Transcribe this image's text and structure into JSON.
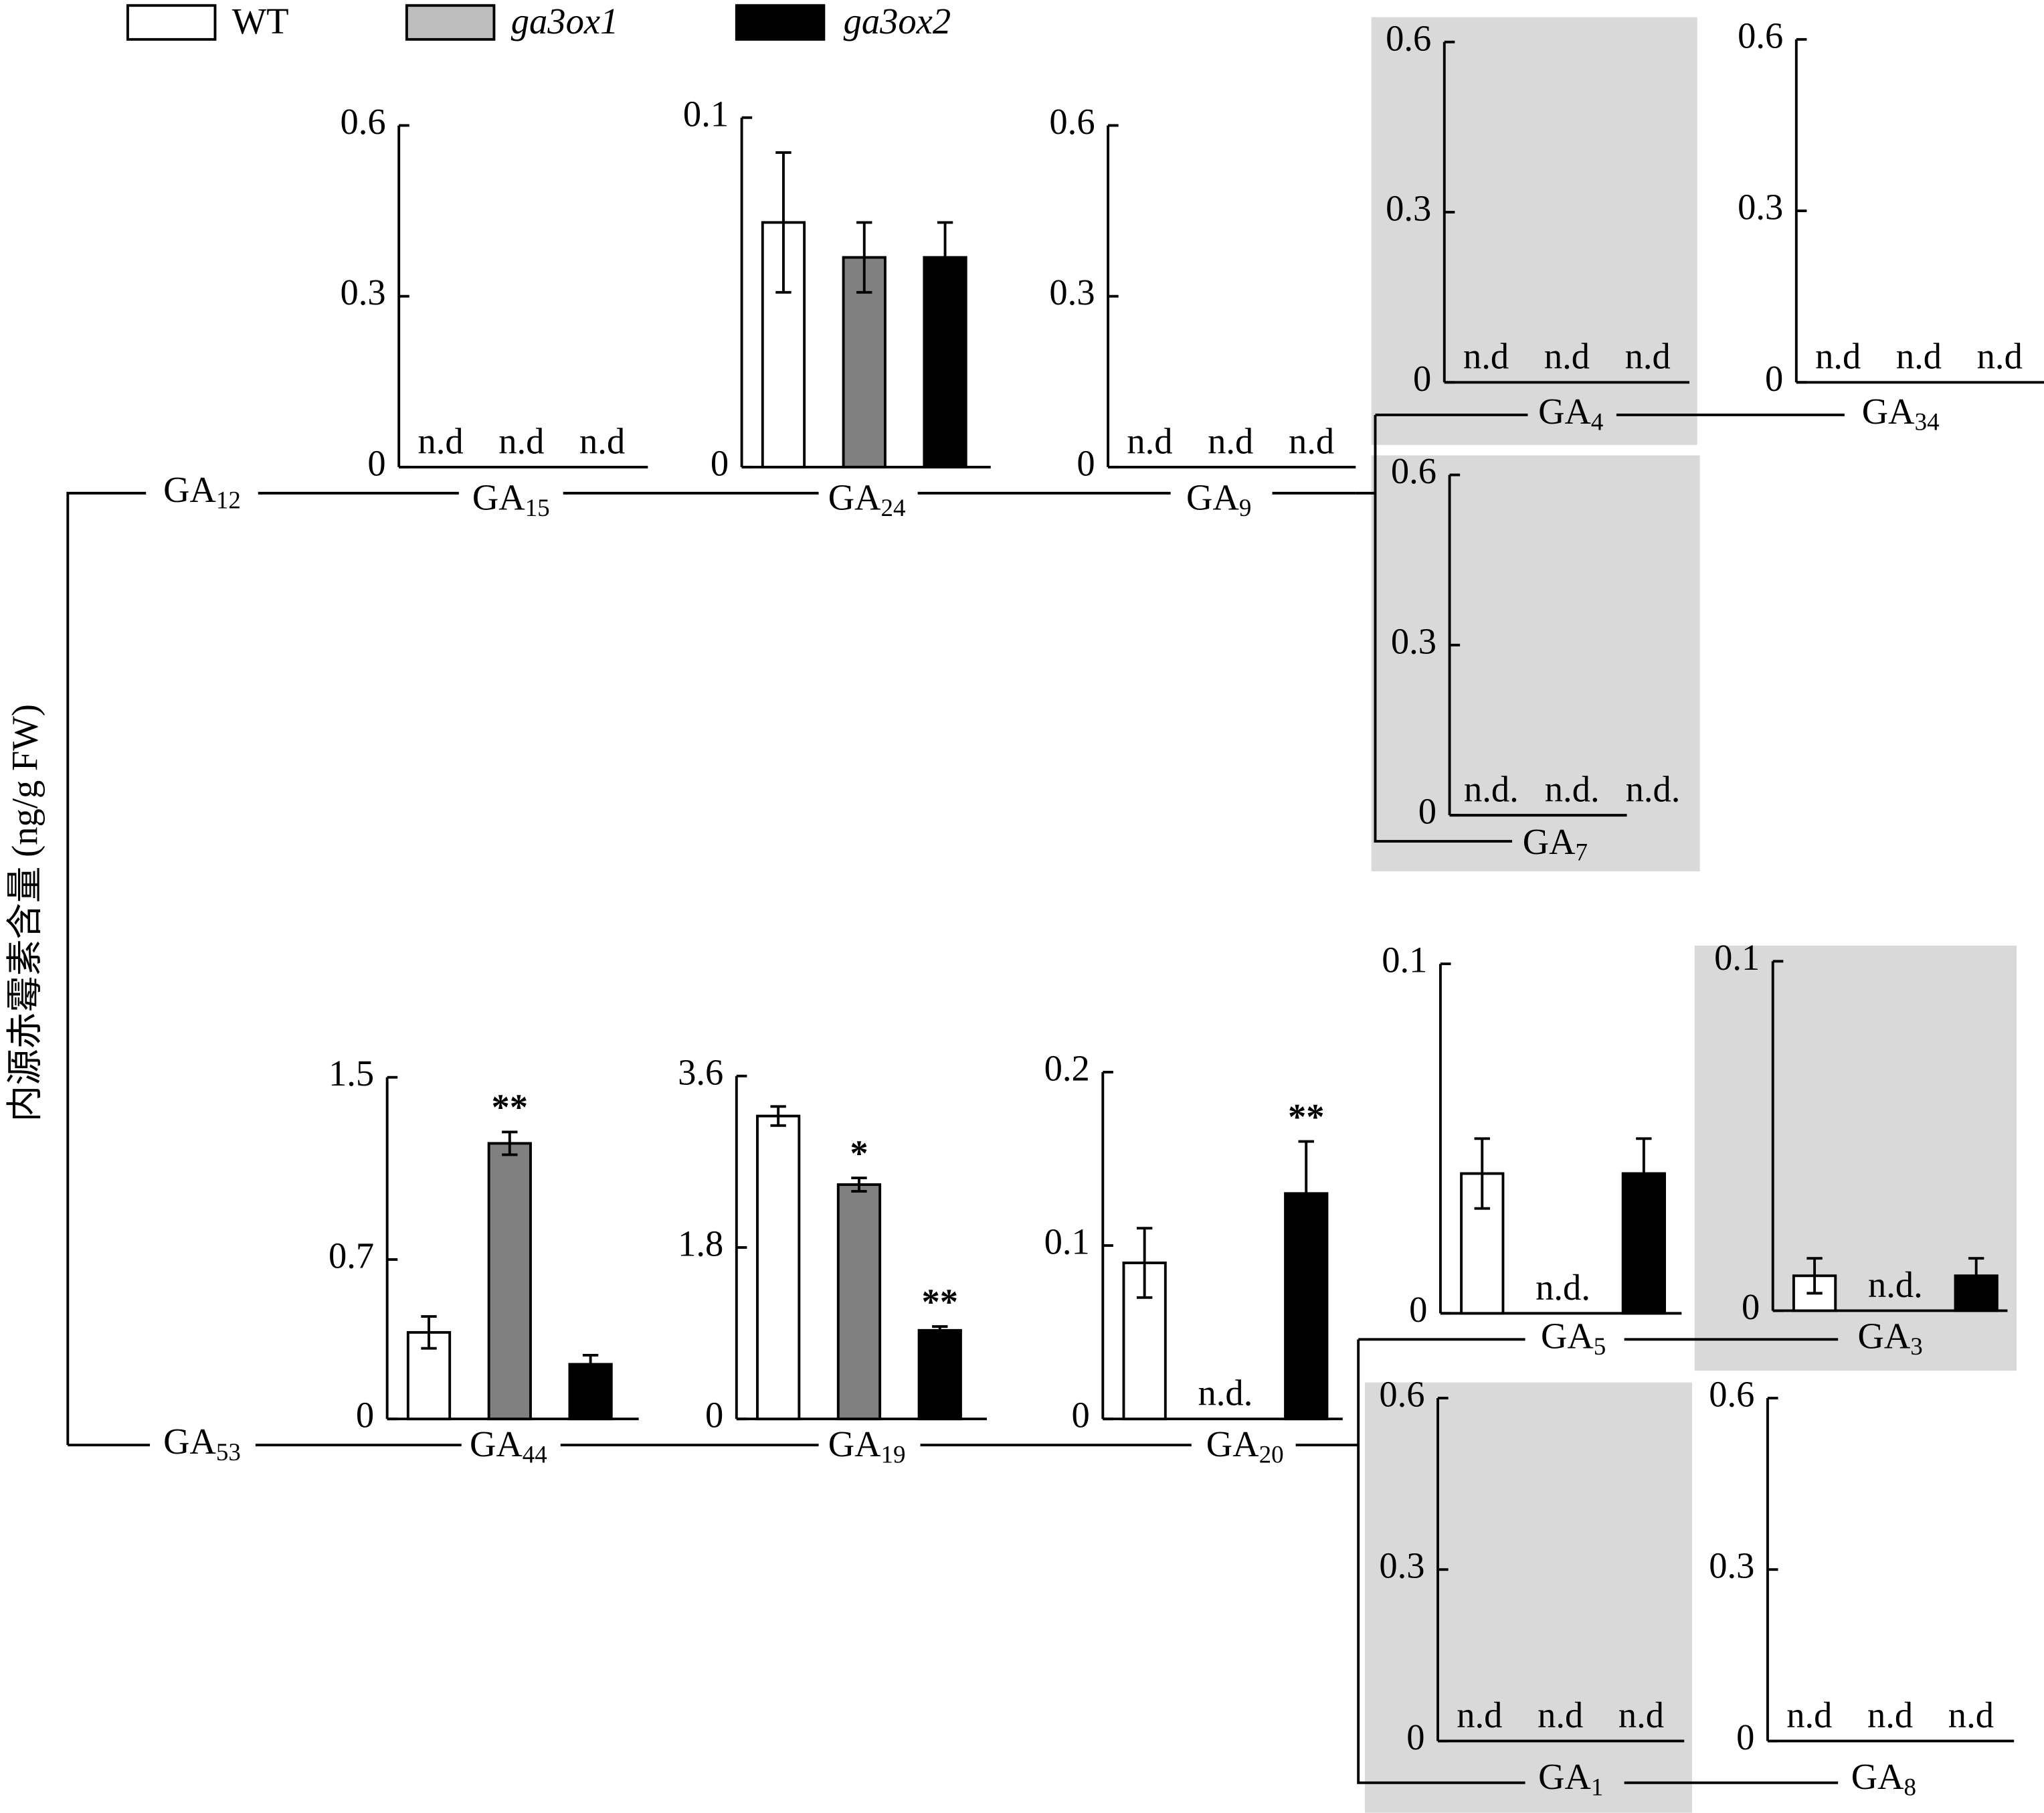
{
  "y_axis_label": "内源赤霉素含量 (ng/g FW)",
  "legend": [
    {
      "name": "WT",
      "swatch": "#ffffff",
      "color": "#ffffff"
    },
    {
      "name": "ga3ox1",
      "swatch": "#bdbdbd",
      "color": "#808080"
    },
    {
      "name": "ga3ox2",
      "swatch": "#000000",
      "color": "#000000"
    }
  ],
  "nodes": [
    {
      "base": "GA",
      "sub": "12"
    },
    {
      "base": "GA",
      "sub": "53"
    }
  ],
  "chart_data": [
    {
      "type": "bar",
      "title": {
        "base": "GA",
        "sub": "15"
      },
      "values": [
        null,
        null,
        null
      ],
      "value_labels": [
        "n.d",
        "n.d",
        "n.d"
      ],
      "ylim": [
        0,
        0.6
      ],
      "yticks": [
        0,
        0.3,
        0.6
      ]
    },
    {
      "type": "bar",
      "title": {
        "base": "GA",
        "sub": "24"
      },
      "values": [
        0.07,
        0.06,
        0.06
      ],
      "errors": [
        0.02,
        0.01,
        0.01
      ],
      "ylim": [
        0,
        0.1
      ],
      "yticks": [
        0,
        0.1
      ]
    },
    {
      "type": "bar",
      "title": {
        "base": "GA",
        "sub": "9"
      },
      "values": [
        null,
        null,
        null
      ],
      "value_labels": [
        "n.d",
        "n.d",
        "n.d"
      ],
      "ylim": [
        0,
        0.6
      ],
      "yticks": [
        0,
        0.3,
        0.6
      ]
    },
    {
      "type": "bar",
      "title": {
        "base": "GA",
        "sub": "4"
      },
      "values": [
        null,
        null,
        null
      ],
      "value_labels": [
        "n.d",
        "n.d",
        "n.d"
      ],
      "ylim": [
        0,
        0.6
      ],
      "yticks": [
        0,
        0.3,
        0.6
      ],
      "highlight": true
    },
    {
      "type": "bar",
      "title": {
        "base": "GA",
        "sub": "34"
      },
      "values": [
        null,
        null,
        null
      ],
      "value_labels": [
        "n.d",
        "n.d",
        "n.d"
      ],
      "ylim": [
        0,
        0.6
      ],
      "yticks": [
        0,
        0.3,
        0.6
      ]
    },
    {
      "type": "bar",
      "title": {
        "base": "GA",
        "sub": "7"
      },
      "values": [
        null,
        null,
        null
      ],
      "value_labels": [
        "n.d.",
        "n.d.",
        "n.d."
      ],
      "ylim": [
        0,
        0.6
      ],
      "yticks": [
        0,
        0.3,
        0.6
      ],
      "highlight": true
    },
    {
      "type": "bar",
      "title": {
        "base": "GA",
        "sub": "44"
      },
      "values": [
        0.38,
        1.21,
        0.24
      ],
      "errors": [
        0.07,
        0.05,
        0.04
      ],
      "significance": [
        null,
        "**",
        null
      ],
      "ylim": [
        0,
        1.5
      ],
      "yticks": [
        0,
        0.7,
        1.5
      ]
    },
    {
      "type": "bar",
      "title": {
        "base": "GA",
        "sub": "19"
      },
      "values": [
        3.18,
        2.46,
        0.93
      ],
      "errors": [
        0.1,
        0.07,
        0.04
      ],
      "significance": [
        null,
        "*",
        "**"
      ],
      "ylim": [
        0,
        3.6
      ],
      "yticks": [
        0,
        1.8,
        3.6
      ]
    },
    {
      "type": "bar",
      "title": {
        "base": "GA",
        "sub": "20"
      },
      "values": [
        0.09,
        null,
        0.13
      ],
      "errors": [
        0.02,
        null,
        0.03
      ],
      "value_labels": [
        null,
        "n.d.",
        null
      ],
      "significance": [
        null,
        null,
        "**"
      ],
      "ylim": [
        0,
        0.2
      ],
      "yticks": [
        0,
        0.1,
        0.2
      ]
    },
    {
      "type": "bar",
      "title": {
        "base": "GA",
        "sub": "5"
      },
      "values": [
        0.04,
        null,
        0.04
      ],
      "errors": [
        0.01,
        null,
        0.01
      ],
      "value_labels": [
        null,
        "n.d.",
        null
      ],
      "ylim": [
        0,
        0.1
      ],
      "yticks": [
        0,
        0.1
      ]
    },
    {
      "type": "bar",
      "title": {
        "base": "GA",
        "sub": "3"
      },
      "values": [
        0.01,
        null,
        0.01
      ],
      "errors": [
        0.005,
        null,
        0.005
      ],
      "value_labels": [
        null,
        "n.d.",
        null
      ],
      "ylim": [
        0,
        0.1
      ],
      "yticks": [
        0,
        0.1
      ],
      "highlight": true
    },
    {
      "type": "bar",
      "title": {
        "base": "GA",
        "sub": "1"
      },
      "values": [
        null,
        null,
        null
      ],
      "value_labels": [
        "n.d",
        "n.d",
        "n.d"
      ],
      "ylim": [
        0,
        0.6
      ],
      "yticks": [
        0,
        0.3,
        0.6
      ],
      "highlight": true
    },
    {
      "type": "bar",
      "title": {
        "base": "GA",
        "sub": "8"
      },
      "values": [
        null,
        null,
        null
      ],
      "value_labels": [
        "n.d",
        "n.d",
        "n.d"
      ],
      "ylim": [
        0,
        0.6
      ],
      "yticks": [
        0,
        0.3,
        0.6
      ]
    }
  ]
}
